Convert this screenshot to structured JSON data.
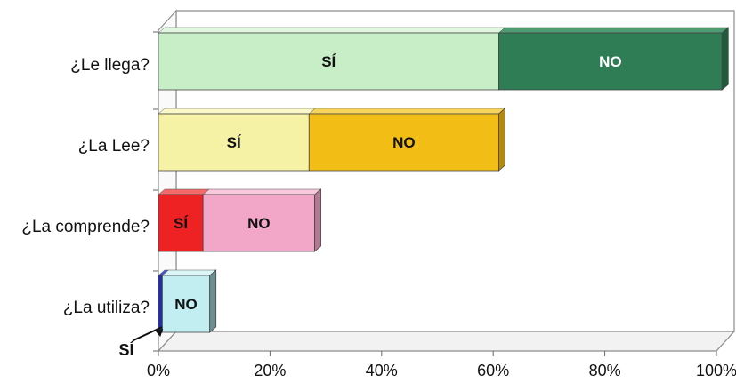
{
  "chart_data": {
    "type": "bar",
    "orientation": "horizontal",
    "stacked": true,
    "three_d": true,
    "categories": [
      "¿Le llega?",
      "¿La Lee?",
      "¿La comprende?",
      "¿La utiliza?"
    ],
    "x_ticks": [
      "0%",
      "20%",
      "40%",
      "60%",
      "80%",
      "100%"
    ],
    "xlim": [
      0,
      100
    ],
    "grid": false,
    "bars": [
      {
        "category": "¿Le llega?",
        "segments": [
          {
            "label": "SÍ",
            "value": 61,
            "color": "#c8eec8",
            "top": "#dff7df",
            "side": "#a9d9a9",
            "label_color": "#111111"
          },
          {
            "label": "NO",
            "value": 40,
            "color": "#2e7d55",
            "top": "#4f9c73",
            "side": "#1f5c3d",
            "label_color": "#ffffff"
          }
        ]
      },
      {
        "category": "¿La Lee?",
        "segments": [
          {
            "label": "SÍ",
            "value": 27,
            "color": "#f5f2a6",
            "top": "#faf8c8",
            "side": "#d9d48a",
            "label_color": "#111111"
          },
          {
            "label": "NO",
            "value": 34,
            "color": "#f2be16",
            "top": "#f7d45c",
            "side": "#b58a0a",
            "label_color": "#111111"
          }
        ]
      },
      {
        "category": "¿La comprende?",
        "segments": [
          {
            "label": "SÍ",
            "value": 8,
            "color": "#ee2222",
            "top": "#f46a6a",
            "side": "#a81414",
            "label_color": "#111111"
          },
          {
            "label": "NO",
            "value": 20,
            "color": "#f2a6c8",
            "top": "#f8c8dd",
            "side": "#b07a92",
            "label_color": "#111111"
          }
        ]
      },
      {
        "category": "¿La utiliza?",
        "segments": [
          {
            "label": "SÍ",
            "value": 0.7,
            "color": "#1f2fa8",
            "top": "#4a58c4",
            "side": "#131d70",
            "label_color": "#111111",
            "callout": true
          },
          {
            "label": "NO",
            "value": 8.5,
            "color": "#c2eef2",
            "top": "#dcf6f8",
            "side": "#6e8f92",
            "label_color": "#111111"
          }
        ]
      }
    ],
    "colors": {
      "wall": "#ffffff",
      "floor": "#f2f2f2",
      "frame": "#8c8c8c"
    }
  }
}
